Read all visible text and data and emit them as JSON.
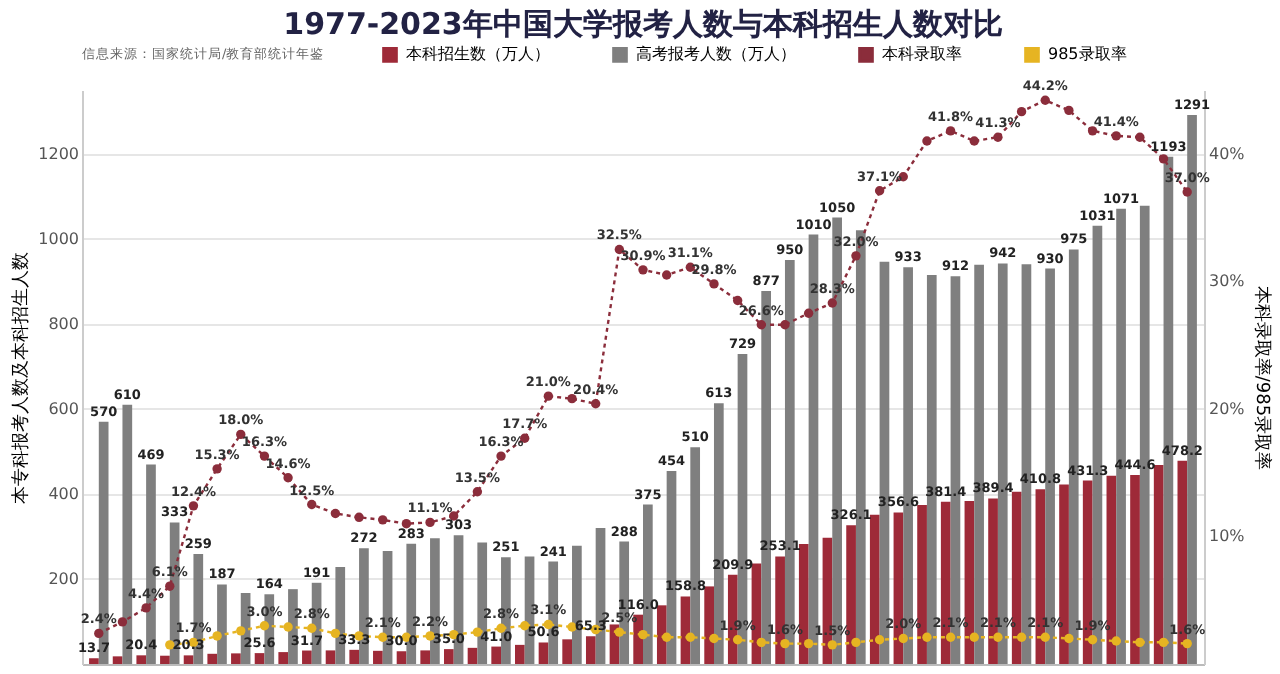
{
  "chart_data": {
    "type": "bar",
    "title": "1977-2023年中国大学报考人数与本科招生人数对比",
    "ylabel": "本专科报考人数及本科招生人数",
    "y2label": "本科录取率/985录取率",
    "annotations": [
      "信息来源：国家统计局/教育部统计年鉴"
    ],
    "categories": [
      null,
      null,
      null,
      null,
      null,
      null,
      null,
      null,
      null,
      null,
      null,
      null,
      null,
      null,
      null,
      null,
      null,
      null,
      null,
      null,
      null,
      null,
      null,
      null,
      null,
      null,
      null,
      null,
      null,
      null,
      null,
      null,
      null,
      null,
      null,
      null,
      null,
      null,
      null,
      null,
      null,
      null,
      null,
      null,
      null,
      null,
      null
    ],
    "tick_labels": "y",
    "grid": "y",
    "legend": "top",
    "marker": "circle",
    "ylim": [
      0,
      1350
    ],
    "yticks": [
      200,
      400,
      600,
      800,
      1000,
      1200
    ],
    "y2lim": [
      0,
      45
    ],
    "y2ticks": [
      {
        "value": 10,
        "label": "10%"
      },
      {
        "value": 20,
        "label": "20%"
      },
      {
        "value": 30,
        "label": "30%"
      },
      {
        "value": 40,
        "label": "40%"
      }
    ],
    "series": [
      {
        "name": "本科招生数（万人）",
        "color": "#9e2a38",
        "values": [
          13.7,
          18,
          20.4,
          19.5,
          20.3,
          24,
          25,
          25.6,
          28,
          31.7,
          32,
          33.3,
          31,
          30.0,
          32,
          35.0,
          38,
          41.0,
          45,
          50.6,
          58,
          65.3,
          93,
          116.0,
          138,
          158.8,
          182.5,
          209.9,
          236.4,
          253.1,
          282.1,
          297.1,
          326.1,
          351.3,
          356.6,
          374.1,
          381.4,
          383.4,
          389.4,
          405.4,
          410.8,
          422.2,
          431.3,
          443,
          444.6,
          467.9,
          478.2
        ],
        "value_labels": [
          "13.7",
          null,
          "20.4",
          null,
          "20.3",
          null,
          null,
          "25.6",
          null,
          "31.7",
          null,
          "33.3",
          null,
          "30.0",
          null,
          "35.0",
          null,
          "41.0",
          null,
          "50.6",
          null,
          "65.3",
          null,
          "116.0",
          null,
          "158.8",
          null,
          "209.9",
          null,
          "253.1",
          null,
          null,
          "326.1",
          null,
          "356.6",
          null,
          "381.4",
          null,
          "389.4",
          null,
          "410.8",
          null,
          "431.3",
          null,
          "444.6",
          null,
          "478.2"
        ]
      },
      {
        "name": "高考报考人数（万人）",
        "color": "#7f7f7f",
        "values": [
          570,
          610,
          469,
          333,
          259,
          187,
          167,
          164,
          176,
          191,
          228,
          272,
          266,
          283,
          296,
          303,
          286,
          251,
          253,
          241,
          278,
          320,
          288,
          375,
          454,
          510,
          613,
          729,
          877,
          950,
          1010,
          1050,
          1020,
          946,
          933,
          915,
          912,
          939,
          942,
          940,
          930,
          975,
          1031,
          1071,
          1078,
          1193,
          1291
        ],
        "value_labels": [
          "570",
          "610",
          "469",
          "333",
          "259",
          "187",
          null,
          "164",
          null,
          "191",
          null,
          "272",
          null,
          "283",
          null,
          "303",
          null,
          "251",
          null,
          "241",
          null,
          null,
          "288",
          "375",
          "454",
          "510",
          "613",
          "729",
          "877",
          "950",
          "1010",
          "1050",
          null,
          null,
          "933",
          null,
          "912",
          null,
          "942",
          null,
          "930",
          "975",
          "1031",
          "1071",
          null,
          "1193",
          "1291"
        ]
      },
      {
        "name": "本科录取率",
        "type": "line",
        "axis": "y2",
        "line_style": "dotted",
        "color": "#8b2d3b",
        "values": [
          2.4,
          3.3,
          4.4,
          6.1,
          12.4,
          15.3,
          18.0,
          16.3,
          14.6,
          12.5,
          11.8,
          11.5,
          11.3,
          11.0,
          11.1,
          11.6,
          13.5,
          16.3,
          17.7,
          21.0,
          20.8,
          20.4,
          32.5,
          30.9,
          30.5,
          31.1,
          29.8,
          28.5,
          26.6,
          26.6,
          27.5,
          28.3,
          32.0,
          37.1,
          38.2,
          41.0,
          41.8,
          41.0,
          41.3,
          43.3,
          44.2,
          43.4,
          41.8,
          41.4,
          41.3,
          39.6,
          37.0
        ],
        "value_labels": [
          "2.4%",
          null,
          "4.4%",
          "6.1%",
          "12.4%",
          "15.3%",
          "18.0%",
          "16.3%",
          "14.6%",
          "12.5%",
          null,
          null,
          null,
          null,
          "11.1%",
          null,
          "13.5%",
          "16.3%",
          "17.7%",
          "21.0%",
          null,
          "20.4%",
          "32.5%",
          "30.9%",
          null,
          "31.1%",
          "29.8%",
          null,
          "26.6%",
          null,
          null,
          "28.3%",
          "32.0%",
          "37.1%",
          null,
          null,
          "41.8%",
          null,
          "41.3%",
          null,
          "44.2%",
          null,
          null,
          "41.4%",
          null,
          null,
          "37.0%"
        ]
      },
      {
        "name": "985录取率",
        "type": "line",
        "axis": "y2",
        "line_style": "dotted",
        "color": "#e6b422",
        "values": [
          null,
          null,
          null,
          1.5,
          1.7,
          2.2,
          2.6,
          3.0,
          2.9,
          2.8,
          2.4,
          2.2,
          2.1,
          2.1,
          2.2,
          2.3,
          2.5,
          2.8,
          3.0,
          3.1,
          2.9,
          2.7,
          2.5,
          2.3,
          2.1,
          2.1,
          2.0,
          1.9,
          1.7,
          1.6,
          1.6,
          1.5,
          1.7,
          1.9,
          2.0,
          2.1,
          2.1,
          2.1,
          2.1,
          2.1,
          2.1,
          2.0,
          1.9,
          1.8,
          1.7,
          1.7,
          1.6
        ],
        "value_labels": [
          null,
          null,
          null,
          null,
          "1.7%",
          null,
          null,
          "3.0%",
          null,
          "2.8%",
          null,
          null,
          "2.1%",
          null,
          "2.2%",
          null,
          null,
          "2.8%",
          null,
          "3.1%",
          null,
          null,
          "2.5%",
          null,
          null,
          null,
          null,
          "1.9%",
          null,
          "1.6%",
          null,
          "1.5%",
          null,
          null,
          "2.0%",
          null,
          "2.1%",
          null,
          "2.1%",
          null,
          "2.1%",
          null,
          "1.9%",
          null,
          null,
          null,
          "1.6%"
        ]
      }
    ]
  }
}
